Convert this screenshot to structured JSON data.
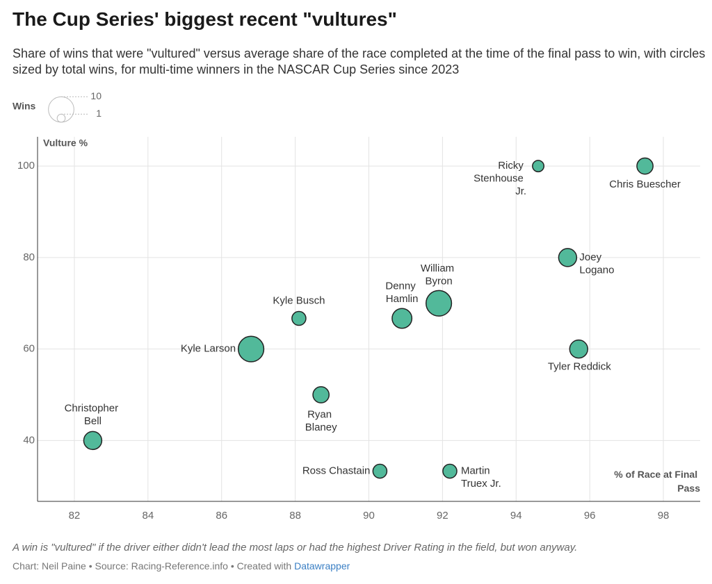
{
  "header": {
    "title": "The Cup Series' biggest recent \"vultures\"",
    "subtitle": "Share of wins that were \"vultured\" versus average share of the race completed at the time of the final pass to win, with circles sized by total wins, for multi-time winners in the NASCAR Cup Series since 2023"
  },
  "chart_data": {
    "type": "scatter",
    "x_label": "% of Race at Final Pass",
    "y_label": "Vulture %",
    "size_legend": {
      "title": "Wins",
      "values": [
        10,
        1
      ]
    },
    "color": "#52b99a",
    "labels": [
      "Ricky Stenhouse Jr.",
      "Chris Buescher",
      "Joey Logano",
      "Tyler Reddick",
      "Denny Hamlin",
      "William Byron",
      "Kyle Busch",
      "Kyle Larson",
      "Ryan Blaney",
      "Christopher Bell",
      "Ross Chastain",
      "Martin Truex Jr."
    ],
    "x": [
      94.6,
      97.5,
      95.4,
      95.7,
      90.9,
      91.9,
      88.1,
      86.8,
      88.7,
      82.5,
      90.3,
      92.2
    ],
    "values": [
      100,
      100,
      80,
      60,
      66.7,
      70,
      66.7,
      60,
      50,
      40,
      33.3,
      33.3
    ],
    "sizes": [
      2,
      4,
      5,
      5,
      6,
      10,
      3,
      10,
      4,
      5,
      3,
      3
    ],
    "xlim": [
      81,
      99
    ],
    "ylim": [
      26.7,
      106.4
    ],
    "xticks": [
      82,
      84,
      86,
      88,
      90,
      92,
      94,
      96,
      98
    ],
    "yticks": [
      40,
      60,
      80,
      100
    ],
    "grid": true
  },
  "footer": {
    "note": "A win is \"vultured\" if the driver either didn't lead the most laps or had the highest Driver Rating in the field, but won anyway.",
    "credits": "Chart: Neil Paine • Source: Racing-Reference.info • Created with",
    "tool": "Datawrapper"
  }
}
